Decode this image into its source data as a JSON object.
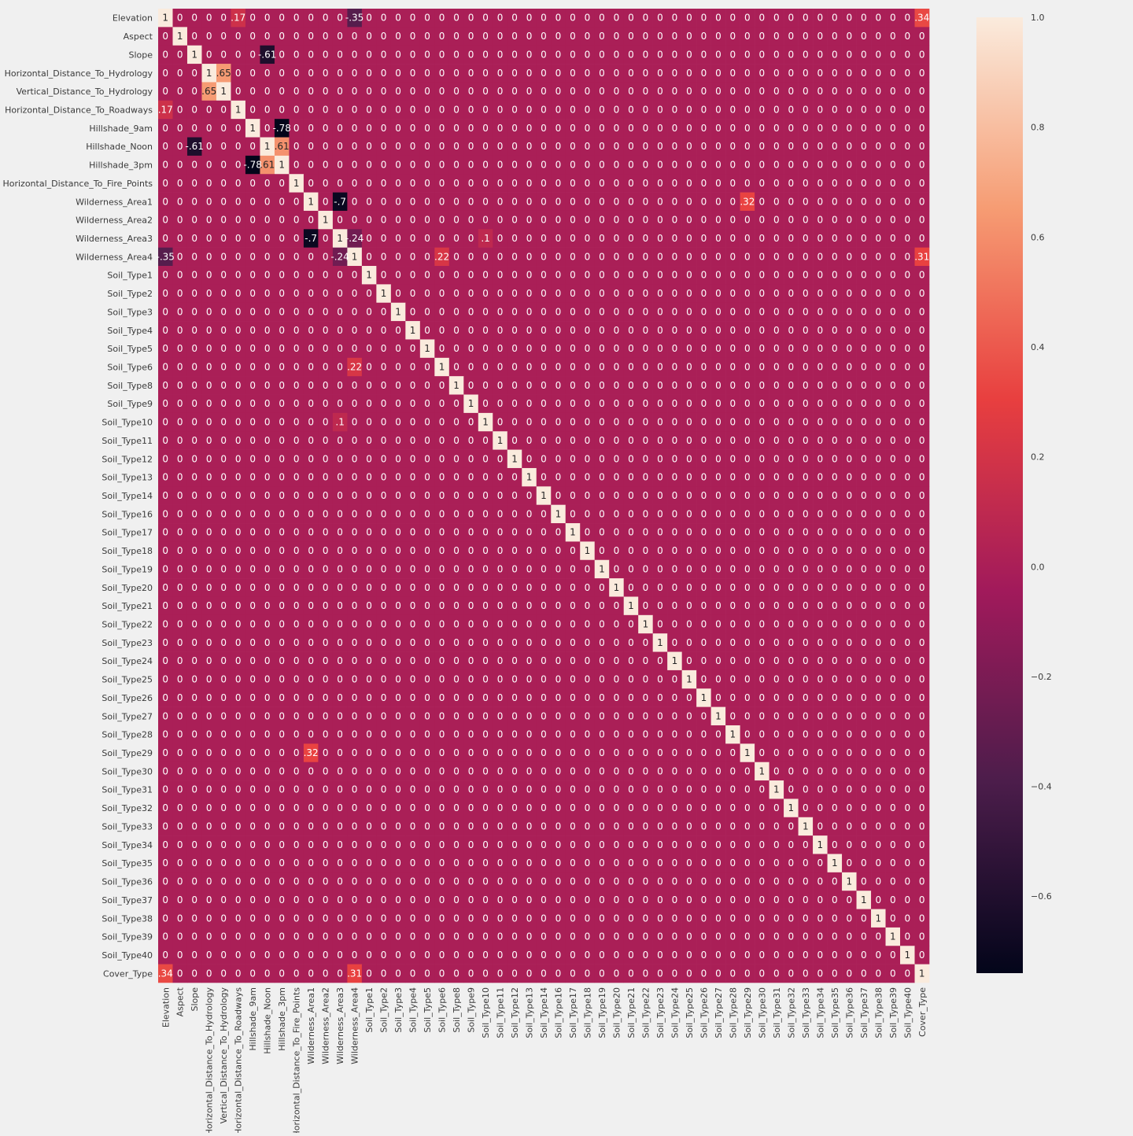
{
  "chart_data": {
    "type": "heatmap",
    "title": "",
    "xlabel": "",
    "ylabel": "",
    "variables": [
      "Elevation",
      "Aspect",
      "Slope",
      "Horizontal_Distance_To_Hydrology",
      "Vertical_Distance_To_Hydrology",
      "Horizontal_Distance_To_Roadways",
      "Hillshade_9am",
      "Hillshade_Noon",
      "Hillshade_3pm",
      "Horizontal_Distance_To_Fire_Points",
      "Wilderness_Area1",
      "Wilderness_Area2",
      "Wilderness_Area3",
      "Wilderness_Area4",
      "Soil_Type1",
      "Soil_Type2",
      "Soil_Type3",
      "Soil_Type4",
      "Soil_Type5",
      "Soil_Type6",
      "Soil_Type8",
      "Soil_Type9",
      "Soil_Type10",
      "Soil_Type11",
      "Soil_Type12",
      "Soil_Type13",
      "Soil_Type14",
      "Soil_Type16",
      "Soil_Type17",
      "Soil_Type18",
      "Soil_Type19",
      "Soil_Type20",
      "Soil_Type21",
      "Soil_Type22",
      "Soil_Type23",
      "Soil_Type24",
      "Soil_Type25",
      "Soil_Type26",
      "Soil_Type27",
      "Soil_Type28",
      "Soil_Type29",
      "Soil_Type30",
      "Soil_Type31",
      "Soil_Type32",
      "Soil_Type33",
      "Soil_Type34",
      "Soil_Type35",
      "Soil_Type36",
      "Soil_Type37",
      "Soil_Type38",
      "Soil_Type39",
      "Soil_Type40",
      "Cover_Type"
    ],
    "diagonal_value": 1,
    "off_diagonal_default": 0.0,
    "notable_values": [
      {
        "row": "Wilderness_Area1",
        "col": "Wilderness_Area3",
        "value": -0.7
      },
      {
        "row": "Wilderness_Area3",
        "col": "Wilderness_Area1",
        "value": -0.7
      },
      {
        "row": "Wilderness_Area4",
        "col": "Elevation",
        "value": -0.35
      },
      {
        "row": "Elevation",
        "col": "Wilderness_Area4",
        "value": -0.35
      },
      {
        "row": "Cover_Type",
        "col": "Elevation",
        "value": 0.34
      },
      {
        "row": "Elevation",
        "col": "Cover_Type",
        "value": 0.34
      },
      {
        "row": "Cover_Type",
        "col": "Wilderness_Area4",
        "value": 0.31
      },
      {
        "row": "Wilderness_Area4",
        "col": "Cover_Type",
        "value": 0.31
      },
      {
        "row": "Soil_Type6",
        "col": "Wilderness_Area4",
        "value": 0.22
      },
      {
        "row": "Wilderness_Area4",
        "col": "Soil_Type6",
        "value": 0.22
      },
      {
        "row": "Soil_Type29",
        "col": "Wilderness_Area1",
        "value": 0.32
      },
      {
        "row": "Wilderness_Area1",
        "col": "Soil_Type29",
        "value": 0.32
      },
      {
        "row": "Soil_Type10",
        "col": "Wilderness_Area3",
        "value": 0.1
      },
      {
        "row": "Wilderness_Area3",
        "col": "Soil_Type10",
        "value": 0.1
      },
      {
        "row": "Horizontal_Distance_To_Roadways",
        "col": "Elevation",
        "value": 0.17
      },
      {
        "row": "Elevation",
        "col": "Horizontal_Distance_To_Roadways",
        "value": 0.17
      },
      {
        "row": "Vertical_Distance_To_Hydrology",
        "col": "Horizontal_Distance_To_Hydrology",
        "value": 0.65
      },
      {
        "row": "Horizontal_Distance_To_Hydrology",
        "col": "Vertical_Distance_To_Hydrology",
        "value": 0.65
      },
      {
        "row": "Hillshade_3pm",
        "col": "Hillshade_9am",
        "value": -0.78
      },
      {
        "row": "Hillshade_9am",
        "col": "Hillshade_3pm",
        "value": -0.78
      },
      {
        "row": "Hillshade_3pm",
        "col": "Hillshade_Noon",
        "value": 0.61
      },
      {
        "row": "Hillshade_Noon",
        "col": "Hillshade_3pm",
        "value": 0.61
      },
      {
        "row": "Hillshade_Noon",
        "col": "Slope",
        "value": -0.61
      },
      {
        "row": "Slope",
        "col": "Hillshade_Noon",
        "value": -0.61
      },
      {
        "row": "Wilderness_Area3",
        "col": "Wilderness_Area4",
        "value": -0.24
      },
      {
        "row": "Wilderness_Area4",
        "col": "Wilderness_Area3",
        "value": -0.24
      }
    ],
    "colorbar": {
      "ticks": [
        "1.0",
        "0.8",
        "0.6",
        "0.4",
        "0.2",
        "0.0",
        "−0.2",
        "−0.4",
        "−0.6"
      ],
      "tick_values": [
        1.0,
        0.8,
        0.6,
        0.4,
        0.2,
        0.0,
        -0.2,
        -0.4,
        -0.6
      ],
      "vmin": -0.74,
      "vmax": 1.0
    },
    "grid": false,
    "legend": "colorbar-right"
  },
  "colors": {
    "background": "#f0f0f0",
    "colormap_stops": [
      "#03051a",
      "#4c1d4b",
      "#a11a5b",
      "#e83f3f",
      "#f69c73",
      "#faebdd"
    ],
    "label_color": "#3a3a3a",
    "annotation_light": "#ffffff",
    "annotation_dark": "#262626"
  }
}
